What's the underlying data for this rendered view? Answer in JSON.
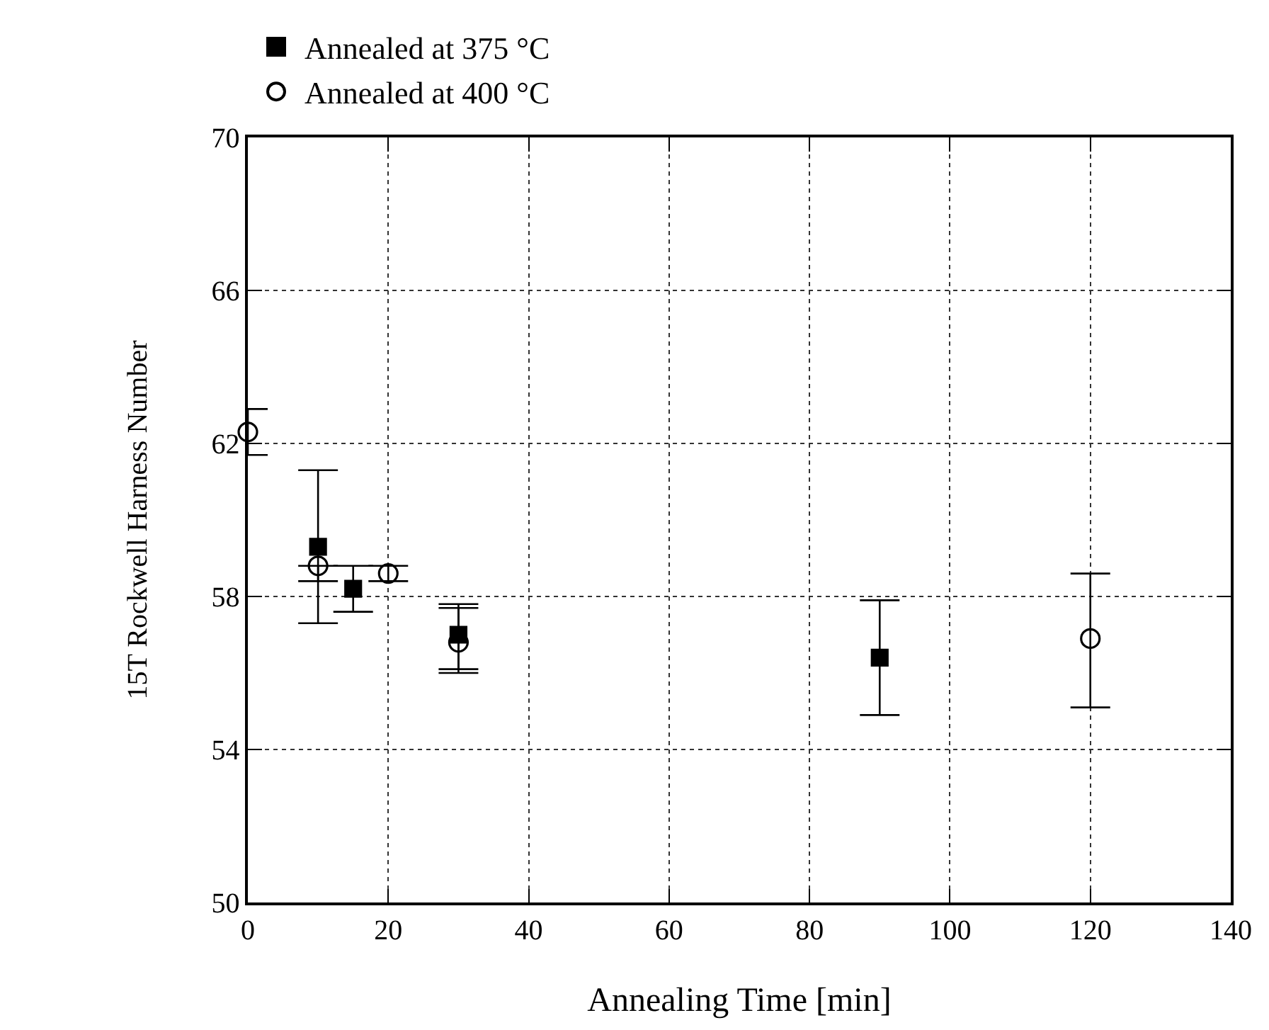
{
  "chart_data": {
    "type": "scatter",
    "xlabel": "Annealing Time [min]",
    "ylabel": "15T Rockwell Harness Number",
    "series": [
      {
        "name": "Annealed at 375 °C",
        "color": "#000000",
        "marker": "square",
        "x": [
          10,
          15,
          30,
          90
        ],
        "values": [
          59.3,
          58.2,
          57.0,
          56.4
        ],
        "errors": [
          [
            57.3,
            61.3
          ],
          [
            57.6,
            58.8
          ],
          [
            56.1,
            57.8
          ],
          [
            54.9,
            57.9
          ]
        ]
      },
      {
        "name": "Annealed at 400 °C",
        "color": "#000000",
        "marker": "circle",
        "x": [
          0,
          10,
          20,
          30,
          120
        ],
        "values": [
          62.3,
          58.8,
          58.6,
          56.8,
          56.9
        ],
        "errors": [
          [
            61.7,
            62.9
          ],
          [
            58.4,
            58.8
          ],
          [
            58.4,
            58.8
          ],
          [
            56.0,
            57.7
          ],
          [
            55.1,
            58.6
          ]
        ]
      }
    ],
    "xlim": [
      0,
      140
    ],
    "xticks": [
      0,
      20,
      40,
      60,
      80,
      100,
      120,
      140
    ],
    "ylim": [
      50,
      70
    ],
    "yticks": [
      50,
      54,
      58,
      62,
      66,
      70
    ],
    "grid": true,
    "legend": "top left"
  }
}
